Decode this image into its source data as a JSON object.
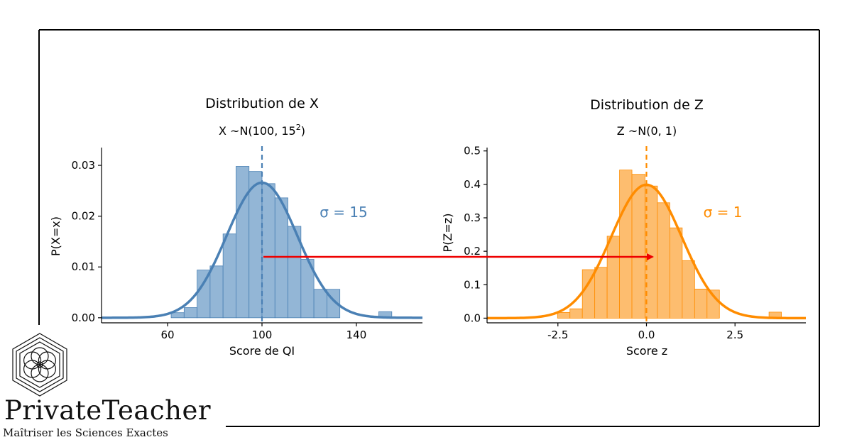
{
  "brand": {
    "name": "PrivateTeacher",
    "tagline": "Maîtriser les Sciences Exactes",
    "logo_icon": "hexagonal-flower-logo-icon"
  },
  "annotation": {
    "arrow_color": "#ee0000",
    "arrow_from": "mean of X (100)",
    "arrow_to": "mean of Z (0)"
  },
  "chart_data": [
    {
      "type": "histogram",
      "title": "Distribution de X",
      "subtitle": {
        "prefix": "X ~N(100, 15",
        "sup": "2",
        "suffix": ")"
      },
      "xlabel": "Score de QI",
      "ylabel": "P(X=x)",
      "xlim": [
        32,
        168
      ],
      "ylim": [
        -0.001,
        0.0335
      ],
      "xticks": [
        60,
        100,
        140
      ],
      "xtick_labels": [
        "60",
        "100",
        "140"
      ],
      "yticks": [
        0,
        0.01,
        0.02,
        0.03
      ],
      "ytick_labels": [
        "0.00",
        "0.01",
        "0.02",
        "0.03"
      ],
      "bin_edges": [
        61.5,
        67,
        72.5,
        78,
        83.5,
        89,
        94.5,
        100,
        105.5,
        111,
        116.5,
        122,
        127.5,
        133,
        138.5,
        144,
        149.5,
        155
      ],
      "densities": [
        0.001,
        0.002,
        0.0094,
        0.0102,
        0.0165,
        0.0298,
        0.0288,
        0.0264,
        0.0236,
        0.018,
        0.0115,
        0.0056,
        0.0056,
        0.0,
        0.0,
        0.0,
        0.0012
      ],
      "density_curve": {
        "mean": 100,
        "sd": 15,
        "x_range": [
          32,
          168
        ]
      },
      "mean_line": 100,
      "annotation_text": "σ = 15",
      "color": "#4a80b4",
      "bar_fill": "#93b6d6",
      "grid": false
    },
    {
      "type": "histogram",
      "title": "Distribution de Z",
      "subtitle": {
        "prefix": "Z ~N(0, 1)",
        "sup": "",
        "suffix": ""
      },
      "xlabel": "Score z",
      "ylabel": "P(Z=z)",
      "xlim": [
        -4.5,
        4.5
      ],
      "ylim": [
        -0.014,
        0.51
      ],
      "xticks": [
        -2.5,
        0,
        2.5
      ],
      "xtick_labels": [
        "-2.5",
        "0.0",
        "2.5"
      ],
      "yticks": [
        0,
        0.1,
        0.2,
        0.3,
        0.4,
        0.5
      ],
      "ytick_labels": [
        "0.0",
        "0.1",
        "0.2",
        "0.3",
        "0.4",
        "0.5"
      ],
      "bin_edges": [
        -2.51,
        -2.16,
        -1.81,
        -1.46,
        -1.11,
        -0.76,
        -0.41,
        -0.04,
        0.31,
        0.66,
        1.01,
        1.36,
        1.71,
        2.06,
        2.41,
        2.76,
        3.11,
        3.46,
        3.81
      ],
      "densities": [
        0.017,
        0.028,
        0.145,
        0.152,
        0.245,
        0.443,
        0.43,
        0.395,
        0.345,
        0.27,
        0.172,
        0.087,
        0.084,
        0.0,
        0.0,
        0.0,
        0.0,
        0.018
      ],
      "density_curve": {
        "mean": 0,
        "sd": 1,
        "x_range": [
          -4.5,
          4.5
        ]
      },
      "mean_line": 0,
      "annotation_text": "σ = 1",
      "color": "#ff8c00",
      "bar_fill": "#fdbd6f",
      "grid": false
    }
  ]
}
